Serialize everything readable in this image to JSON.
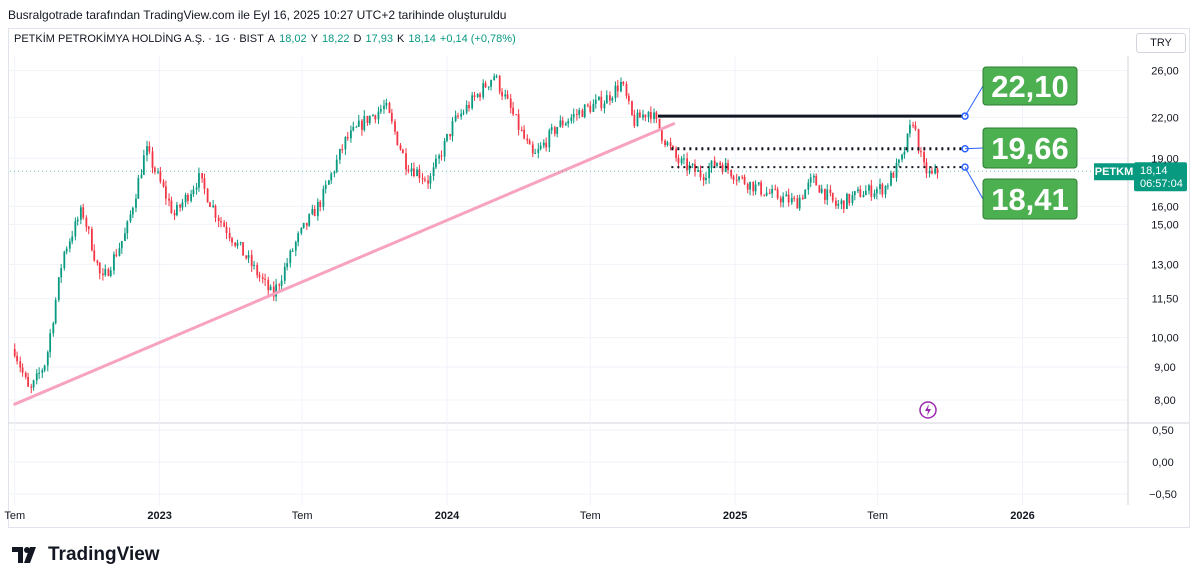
{
  "header": {
    "title": "Busralgotrade tarafından TradingView.com ile Eyl 16, 2025 10:27 UTC+2 tarihinde oluşturuldu"
  },
  "legend": {
    "symbol": "PETKİM PETROKİMYA HOLDİNG A.Ş. · 1G · BIST",
    "open_label": "A",
    "open": "18,02",
    "high_label": "Y",
    "high": "18,22",
    "low_label": "D",
    "low": "17,93",
    "close_label": "K",
    "close": "18,14",
    "change": "+0,14 (+0,78%)"
  },
  "currency": "TRY",
  "price_tag": {
    "ticker": "PETKM",
    "price": "18,14",
    "countdown": "06:57:04"
  },
  "annotations": [
    "22,10",
    "19,66",
    "18,41"
  ],
  "brand": "TradingView",
  "colors": {
    "up": "#089981",
    "down": "#f23645",
    "trendline": "#f7a3c0",
    "label_bg": "#4caf50",
    "label_border": "#2e7d32",
    "tag_bg": "#089981",
    "support": "#131722",
    "connector": "#2962ff",
    "lightning": "#9c27b0"
  },
  "chart_data": {
    "type": "candlestick",
    "scale": "log",
    "x_ticks": [
      "Tem",
      "2023",
      "Tem",
      "2024",
      "Tem",
      "2025",
      "Tem",
      "2026"
    ],
    "y_ticks": [
      "26,00",
      "22,00",
      "19,00",
      "16,00",
      "15,00",
      "13,00",
      "11,50",
      "10,00",
      "9,00",
      "8,00"
    ],
    "indicator_ticks": [
      "0,50",
      "0,00",
      "−0,50"
    ],
    "ylim": [
      7.5,
      27.5
    ],
    "anchors": [
      [
        "2022-07-01",
        9.6
      ],
      [
        "2022-07-20",
        8.2
      ],
      [
        "2022-08-10",
        9.2
      ],
      [
        "2022-09-01",
        13.5
      ],
      [
        "2022-09-25",
        15.8
      ],
      [
        "2022-10-20",
        12.2
      ],
      [
        "2022-11-20",
        14.6
      ],
      [
        "2022-12-15",
        19.6
      ],
      [
        "2023-01-20",
        15.5
      ],
      [
        "2023-02-20",
        17.7
      ],
      [
        "2023-03-15",
        15.5
      ],
      [
        "2023-04-20",
        13.4
      ],
      [
        "2023-05-25",
        11.6
      ],
      [
        "2023-06-25",
        14.2
      ],
      [
        "2023-07-25",
        16.3
      ],
      [
        "2023-08-25",
        20.2
      ],
      [
        "2023-09-20",
        21.8
      ],
      [
        "2023-10-15",
        22.9
      ],
      [
        "2023-11-10",
        18.7
      ],
      [
        "2023-12-10",
        17.5
      ],
      [
        "2024-01-10",
        21.6
      ],
      [
        "2024-02-10",
        23.9
      ],
      [
        "2024-03-01",
        25.6
      ],
      [
        "2024-03-20",
        22.9
      ],
      [
        "2024-04-20",
        19.0
      ],
      [
        "2024-05-20",
        21.3
      ],
      [
        "2024-06-20",
        22.5
      ],
      [
        "2024-07-20",
        23.4
      ],
      [
        "2024-08-10",
        24.9
      ],
      [
        "2024-08-25",
        21.6
      ],
      [
        "2024-09-15",
        22.6
      ],
      [
        "2024-10-01",
        20.6
      ],
      [
        "2024-10-20",
        18.8
      ],
      [
        "2024-11-20",
        17.9
      ],
      [
        "2024-12-10",
        18.8
      ],
      [
        "2025-01-10",
        17.6
      ],
      [
        "2025-02-10",
        16.8
      ],
      [
        "2025-03-20",
        16.2
      ],
      [
        "2025-04-10",
        17.6
      ],
      [
        "2025-05-10",
        16.0
      ],
      [
        "2025-06-10",
        16.8
      ],
      [
        "2025-07-10",
        17.1
      ],
      [
        "2025-08-01",
        18.9
      ],
      [
        "2025-08-15",
        21.8
      ],
      [
        "2025-08-28",
        18.4
      ],
      [
        "2025-09-08",
        17.8
      ],
      [
        "2025-09-16",
        18.14
      ]
    ],
    "trendline": [
      [
        "2022-07-01",
        7.88
      ],
      [
        "2024-10-15",
        21.5
      ]
    ],
    "levels": [
      {
        "value": 22.1,
        "from": "2024-09-25",
        "to": "2025-10-20",
        "style": "solid"
      },
      {
        "value": 19.66,
        "from": "2024-10-12",
        "to": "2025-10-20",
        "style": "dotted"
      },
      {
        "value": 18.41,
        "from": "2024-10-12",
        "to": "2025-10-20",
        "style": "dotted"
      }
    ]
  }
}
